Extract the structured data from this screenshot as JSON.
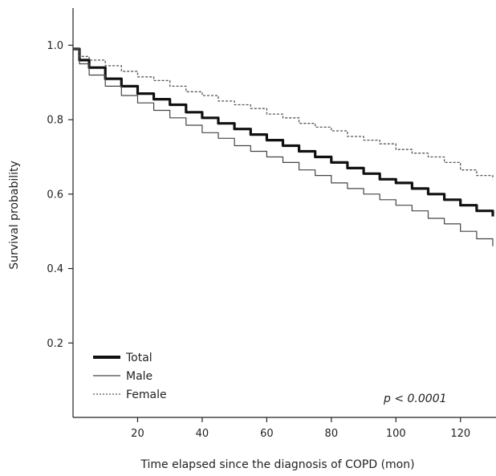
{
  "chart_data": {
    "type": "line",
    "xlabel": "Time elapsed since the diagnosis of COPD (mon)",
    "ylabel": "Survival probability",
    "xlim": [
      0,
      131
    ],
    "ylim": [
      0,
      1.1
    ],
    "x_ticks": [
      20,
      40,
      60,
      80,
      100,
      120
    ],
    "y_ticks": [
      0.2,
      0.4,
      0.6,
      0.8,
      1.0
    ],
    "x_tick_labels": [
      "20",
      "40",
      "60",
      "80",
      "100",
      "120"
    ],
    "y_tick_labels": [
      "0.2",
      "0.4",
      "0.6",
      "0.8",
      "1.0"
    ],
    "grid": false,
    "legend_position": "bottom-left",
    "annotation": "p < 0.0001",
    "series": [
      {
        "name": "Total",
        "style": "solid-thick",
        "color": "#111111",
        "x": [
          0,
          2,
          5,
          10,
          15,
          20,
          25,
          30,
          35,
          40,
          45,
          50,
          55,
          60,
          65,
          70,
          75,
          80,
          85,
          90,
          95,
          100,
          105,
          110,
          115,
          120,
          125,
          130
        ],
        "y": [
          0.99,
          0.96,
          0.94,
          0.91,
          0.89,
          0.87,
          0.855,
          0.84,
          0.82,
          0.805,
          0.79,
          0.775,
          0.76,
          0.745,
          0.73,
          0.715,
          0.7,
          0.685,
          0.67,
          0.655,
          0.64,
          0.63,
          0.615,
          0.6,
          0.585,
          0.57,
          0.555,
          0.54
        ]
      },
      {
        "name": "Male",
        "style": "solid-thin",
        "color": "#444444",
        "x": [
          0,
          2,
          5,
          10,
          15,
          20,
          25,
          30,
          35,
          40,
          45,
          50,
          55,
          60,
          65,
          70,
          75,
          80,
          85,
          90,
          95,
          100,
          105,
          110,
          115,
          120,
          125,
          130
        ],
        "y": [
          0.99,
          0.95,
          0.92,
          0.89,
          0.865,
          0.845,
          0.825,
          0.805,
          0.785,
          0.765,
          0.75,
          0.73,
          0.715,
          0.7,
          0.685,
          0.665,
          0.65,
          0.63,
          0.615,
          0.6,
          0.585,
          0.57,
          0.555,
          0.535,
          0.52,
          0.5,
          0.48,
          0.46
        ]
      },
      {
        "name": "Female",
        "style": "dotted",
        "color": "#555555",
        "x": [
          0,
          2,
          5,
          10,
          15,
          20,
          25,
          30,
          35,
          40,
          45,
          50,
          55,
          60,
          65,
          70,
          75,
          80,
          85,
          90,
          95,
          100,
          105,
          110,
          115,
          120,
          125,
          130
        ],
        "y": [
          0.99,
          0.97,
          0.96,
          0.945,
          0.93,
          0.915,
          0.905,
          0.89,
          0.875,
          0.865,
          0.85,
          0.84,
          0.83,
          0.815,
          0.805,
          0.79,
          0.78,
          0.77,
          0.755,
          0.745,
          0.735,
          0.72,
          0.71,
          0.7,
          0.685,
          0.665,
          0.65,
          0.64
        ]
      }
    ]
  }
}
